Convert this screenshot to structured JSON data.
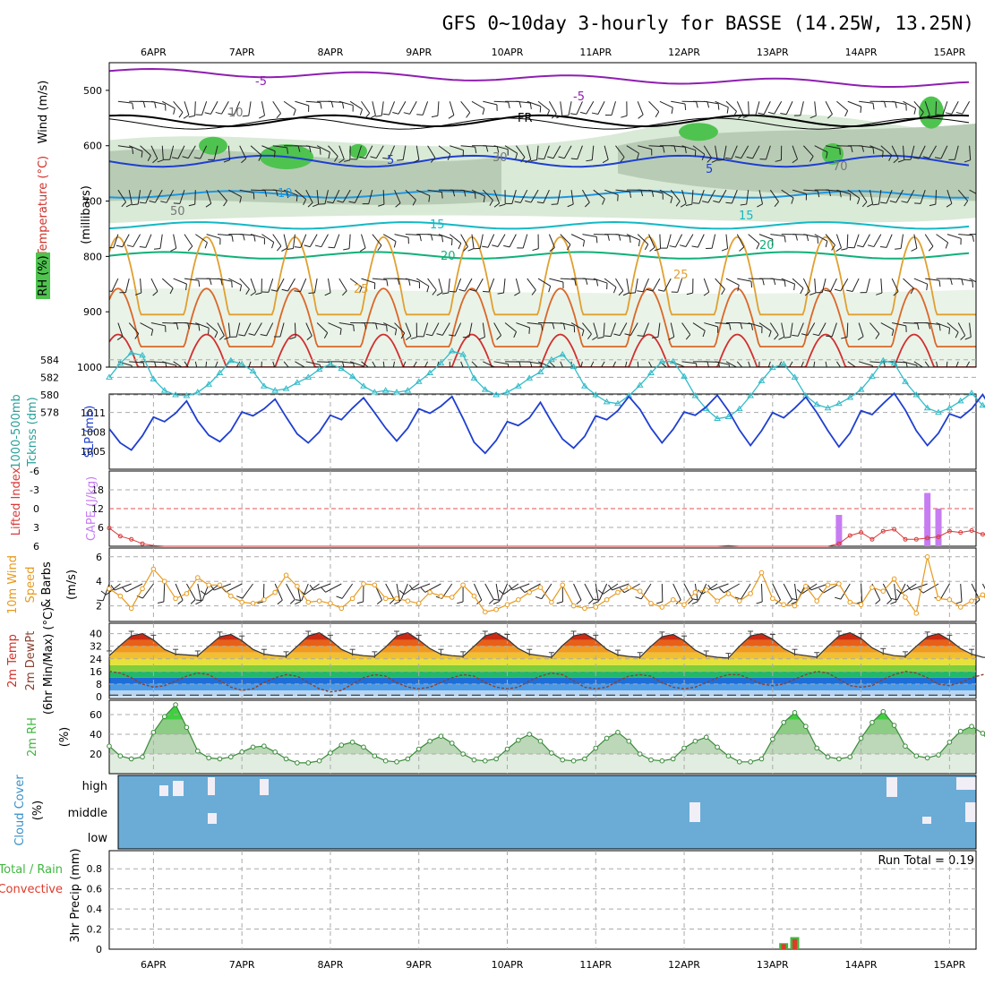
{
  "title": "GFS 0~10day 3-hourly for BASSE (14.25W, 13.25N)",
  "dates": [
    "6APR",
    "7APR",
    "8APR",
    "9APR",
    "10APR",
    "11APR",
    "12APR",
    "13APR",
    "14APR",
    "15APR"
  ],
  "run_total": "Run Total = 0.19",
  "colors": {
    "rh_fill": "#4fc34f",
    "slp": "#1f3fd0",
    "thickness": "#33bbc8",
    "lifted": "#d93a3a",
    "cape": "#c77cf2",
    "wind": "#e69a1e",
    "rh2m": "#3fb83f",
    "cloud": "#6aacd6",
    "rain": "#3fb83f",
    "convective": "#e03a2a"
  },
  "chart_data": [
    {
      "id": "upper-air",
      "type": "heatmap",
      "title": "",
      "ylabel": "(millibars)",
      "left_labels": [
        "Wind (m/s)",
        "Temperature (°C)",
        "RH (%)"
      ],
      "yticks": [
        500,
        600,
        700,
        800,
        900,
        1000
      ],
      "ylim": [
        450,
        1000
      ],
      "isotherm_labels": [
        "-5",
        "-5",
        "FR",
        "5",
        "5",
        "10",
        "15",
        "15",
        "20",
        "20",
        "25",
        "25"
      ],
      "rh_labels": [
        "10",
        "30",
        "50",
        "70"
      ]
    },
    {
      "id": "slp-thickness",
      "type": "line",
      "left_labels": [
        "1000-500mb",
        "Tcknss (dm)",
        "SLP (mb)"
      ],
      "thickness_ticks": [
        578,
        580,
        582,
        584
      ],
      "slp_ticks": [
        1005,
        1008,
        1011
      ],
      "series": [
        {
          "name": "SLP (mb)",
          "axis": "slp",
          "values": [
            1008.5,
            1006.3,
            1005.2,
            1007.4,
            1010.3,
            1009.6,
            1010.9,
            1012.8,
            1009.7,
            1007.5,
            1006.5,
            1008.2,
            1011.1,
            1010.5,
            1011.6,
            1013.1,
            1010.3,
            1007.7,
            1006.3,
            1008.0,
            1010.6,
            1009.9,
            1011.7,
            1013.3,
            1011.0,
            1008.6,
            1006.6,
            1008.6,
            1011.6,
            1010.9,
            1012.0,
            1013.5,
            1010.1,
            1006.4,
            1004.7,
            1006.7,
            1009.6,
            1009.0,
            1010.2,
            1012.6,
            1009.6,
            1006.9,
            1005.5,
            1007.3,
            1010.5,
            1009.9,
            1011.3,
            1013.5,
            1011.5,
            1008.6,
            1006.3,
            1008.4,
            1011.1,
            1010.6,
            1011.9,
            1013.7,
            1011.3,
            1008.3,
            1005.9,
            1008.2,
            1011.0,
            1010.2,
            1011.7,
            1013.4,
            1011.0,
            1008.2,
            1005.7,
            1007.8,
            1011.3,
            1010.7,
            1012.4,
            1014.0,
            1011.4,
            1008.2,
            1005.9,
            1007.8,
            1010.8,
            1010.2,
            1011.6,
            1013.8,
            1011.0
          ]
        },
        {
          "name": "1000-500mb Thickness (dm)",
          "axis": "thickness",
          "values": [
            582.0,
            583.6,
            584.8,
            584.5,
            581.8,
            580.5,
            580.0,
            579.9,
            580.3,
            581.2,
            582.5,
            583.9,
            583.5,
            582.7,
            581.0,
            580.5,
            580.7,
            581.4,
            582.0,
            582.9,
            583.5,
            583.0,
            582.1,
            581.0,
            580.3,
            580.5,
            580.3,
            580.5,
            581.5,
            582.5,
            583.6,
            585.0,
            584.6,
            581.9,
            580.6,
            580.0,
            580.3,
            581.0,
            581.9,
            582.6,
            584.0,
            584.6,
            583.2,
            581.0,
            580.0,
            579.2,
            579.0,
            579.9,
            581.1,
            582.5,
            583.8,
            583.8,
            582.1,
            579.9,
            578.4,
            577.3,
            577.5,
            578.4,
            579.9,
            581.6,
            583.1,
            583.5,
            582.0,
            579.9,
            578.9,
            578.5,
            579.0,
            579.7,
            580.6,
            582.1,
            583.9,
            583.6,
            581.5,
            580.0,
            578.5,
            578.0,
            578.5,
            579.3,
            580.2,
            578.8,
            577.8
          ]
        }
      ]
    },
    {
      "id": "lifted-cape",
      "type": "bar",
      "left_labels": [
        "Lifted Index",
        "CAPE (J/kg)"
      ],
      "li_ticks": [
        "-6",
        "-3",
        "0",
        "3",
        "6"
      ],
      "cape_ticks": [
        "18",
        "12",
        "6"
      ],
      "lifted_index": [
        3.1,
        4.4,
        4.9,
        5.6,
        5.9,
        6.4,
        6.3,
        6.6,
        7.0,
        6.7,
        7.0,
        7.0,
        7.3,
        6.9,
        6.8,
        7.1,
        6.8,
        7.0,
        6.9,
        7.2,
        7.0,
        7.1,
        6.8,
        6.9,
        6.6,
        6.6,
        6.6,
        7.2,
        6.9,
        6.7,
        6.8,
        6.9,
        6.9,
        7.2,
        7.3,
        6.9,
        6.9,
        6.6,
        6.8,
        6.8,
        6.9,
        6.6,
        6.8,
        6.9,
        6.6,
        6.6,
        6.5,
        6.9,
        6.8,
        7.0,
        6.7,
        6.9,
        6.9,
        6.8,
        6.6,
        6.9,
        5.9,
        6.3,
        6.4,
        6.5,
        7.2,
        6.4,
        6.9,
        6.7,
        6.8,
        6.6,
        5.6,
        4.3,
        3.8,
        4.9,
        3.6,
        3.3,
        4.9,
        4.9,
        4.7,
        4.5,
        3.6,
        3.8,
        3.5,
        4.1,
        4.0
      ],
      "cape": [
        {
          "day": 13.75,
          "value": 10
        },
        {
          "day": 14.75,
          "value": 17
        },
        {
          "day": 14.875,
          "value": 12
        }
      ]
    },
    {
      "id": "wind10m",
      "type": "line",
      "left_labels": [
        "10m Wind",
        "Speed",
        "& Barbs",
        "(m/s)"
      ],
      "yticks": [
        2,
        4,
        6
      ],
      "values": [
        3.4,
        2.8,
        1.8,
        3.4,
        5.0,
        4.0,
        2.6,
        3.0,
        4.3,
        3.7,
        3.7,
        2.8,
        2.3,
        2.2,
        2.5,
        3.1,
        4.5,
        3.6,
        2.3,
        2.4,
        2.2,
        1.8,
        2.6,
        3.8,
        3.7,
        2.6,
        2.6,
        2.4,
        2.2,
        3.1,
        2.8,
        2.7,
        3.7,
        2.8,
        1.5,
        1.7,
        2.1,
        2.5,
        3.1,
        3.5,
        2.3,
        3.7,
        2.0,
        1.8,
        1.9,
        2.5,
        3.1,
        3.5,
        3.2,
        2.2,
        1.9,
        2.5,
        2.1,
        3.1,
        3.3,
        2.4,
        3.0,
        2.4,
        3.0,
        4.7,
        2.6,
        2.1,
        2.0,
        3.6,
        2.4,
        3.7,
        3.8,
        2.3,
        2.1,
        3.5,
        3.2,
        4.2,
        2.7,
        1.4,
        6.0,
        2.6,
        2.5,
        1.9,
        2.4,
        2.9,
        1.8
      ]
    },
    {
      "id": "temp2m",
      "type": "area",
      "left_labels": [
        "2m Temp",
        "2m DewPt",
        "(6hr Min/Max) (°C)"
      ],
      "yticks": [
        0,
        8,
        16,
        24,
        32,
        40
      ],
      "ylim": [
        0,
        42
      ],
      "temperature": [
        26.0,
        32.5,
        38.5,
        40.0,
        36.0,
        30.0,
        27.0,
        26.5,
        26.0,
        32.0,
        38.0,
        39.5,
        35.5,
        30.0,
        27.0,
        26.0,
        25.5,
        32.0,
        38.5,
        40.5,
        36.0,
        30.0,
        27.0,
        26.0,
        25.5,
        31.5,
        38.5,
        40.5,
        36.0,
        30.5,
        27.0,
        26.0,
        25.5,
        32.0,
        38.5,
        40.5,
        36.5,
        30.5,
        27.0,
        26.0,
        25.0,
        32.5,
        38.5,
        40.0,
        36.0,
        30.0,
        26.5,
        25.5,
        25.0,
        32.0,
        38.0,
        39.5,
        35.5,
        29.5,
        26.0,
        25.0,
        24.5,
        32.0,
        38.5,
        40.0,
        36.5,
        30.5,
        27.0,
        26.0,
        25.0,
        32.0,
        38.5,
        40.5,
        37.0,
        31.0,
        27.5,
        26.0,
        25.5,
        32.0,
        38.0,
        40.0,
        36.0,
        30.5,
        27.0,
        25.0,
        24.5
      ],
      "dewpoint": [
        16.0,
        15.0,
        12.0,
        8.0,
        6.0,
        7.0,
        10.0,
        13.0,
        15.0,
        14.0,
        10.0,
        6.0,
        4.0,
        5.0,
        9.0,
        12.0,
        14.0,
        13.0,
        9.0,
        5.0,
        3.0,
        4.0,
        8.0,
        12.0,
        14.0,
        13.0,
        9.0,
        6.0,
        5.0,
        6.0,
        9.0,
        12.0,
        14.0,
        13.0,
        9.0,
        6.0,
        5.0,
        6.0,
        10.0,
        13.0,
        15.0,
        14.0,
        10.0,
        6.0,
        5.0,
        6.0,
        10.0,
        13.0,
        14.0,
        13.0,
        9.0,
        6.0,
        5.0,
        6.0,
        9.0,
        12.0,
        14.0,
        14.0,
        11.0,
        8.0,
        7.0,
        8.0,
        11.0,
        14.0,
        16.0,
        15.0,
        11.0,
        7.0,
        6.0,
        7.0,
        11.0,
        14.0,
        16.0,
        15.0,
        12.0,
        8.0,
        7.0,
        9.0,
        12.0,
        14.0,
        15.0
      ]
    },
    {
      "id": "rh2m",
      "type": "area",
      "left_labels": [
        "2m RH",
        "(%)"
      ],
      "yticks": [
        20,
        40,
        60
      ],
      "ylim": [
        0,
        75
      ],
      "values": [
        28,
        18,
        15,
        17,
        42,
        58,
        70,
        47,
        23,
        16,
        15,
        17,
        22,
        27,
        28,
        22,
        15,
        11,
        11,
        13,
        21,
        29,
        32,
        27,
        18,
        13,
        12,
        15,
        25,
        33,
        38,
        31,
        20,
        14,
        13,
        15,
        25,
        34,
        40,
        33,
        21,
        14,
        13,
        15,
        26,
        36,
        42,
        33,
        20,
        14,
        13,
        15,
        26,
        33,
        37,
        27,
        18,
        12,
        12,
        15,
        35,
        52,
        62,
        48,
        26,
        17,
        15,
        17,
        36,
        52,
        63,
        49,
        28,
        18,
        16,
        19,
        32,
        43,
        48,
        41,
        26
      ]
    },
    {
      "id": "cloud",
      "type": "bar",
      "left_labels": [
        "Cloud Cover",
        "(%)"
      ],
      "levels": [
        "high",
        "middle",
        "low"
      ]
    },
    {
      "id": "precip",
      "type": "bar",
      "left_labels": [
        "Total / Rain",
        "Convective",
        "3hr Precip (mm)"
      ],
      "yticks": [
        0,
        0.2,
        0.4,
        0.6,
        0.8
      ],
      "ylim": [
        0,
        0.98
      ],
      "bars": [
        {
          "day": 13.125,
          "total": 0.06,
          "convective": 0.05
        },
        {
          "day": 13.25,
          "total": 0.12,
          "convective": 0.1
        }
      ]
    }
  ]
}
